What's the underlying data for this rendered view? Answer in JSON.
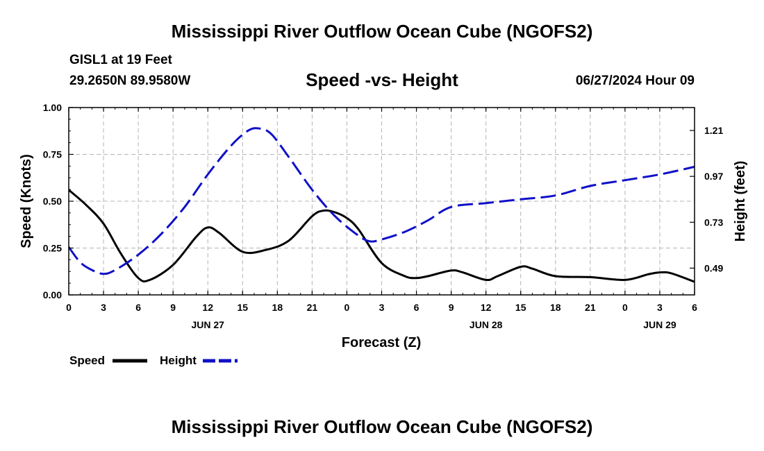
{
  "header": {
    "title": "Mississippi River Outflow Ocean Cube (NGOFS2)",
    "station": "GISL1 at 19 Feet",
    "coords": "29.2650N  89.9580W",
    "subtitle": "Speed -vs- Height",
    "timestamp": "06/27/2024 Hour 09"
  },
  "footer": {
    "title": "Mississippi River Outflow Ocean Cube (NGOFS2)"
  },
  "colors": {
    "speed": "#000000",
    "height": "#1010c8",
    "grid": "#b4b4b4"
  },
  "chart_data": {
    "type": "line",
    "xlabel": "Forecast (Z)",
    "ylabel_left": "Speed (Knots)",
    "ylabel_right": "Height (feet)",
    "x_range": [
      0,
      54
    ],
    "x_ticks": [
      {
        "x": 0,
        "label": "0"
      },
      {
        "x": 3,
        "label": "3"
      },
      {
        "x": 6,
        "label": "6"
      },
      {
        "x": 9,
        "label": "9"
      },
      {
        "x": 12,
        "label": "12"
      },
      {
        "x": 15,
        "label": "15"
      },
      {
        "x": 18,
        "label": "18"
      },
      {
        "x": 21,
        "label": "21"
      },
      {
        "x": 24,
        "label": "0"
      },
      {
        "x": 27,
        "label": "3"
      },
      {
        "x": 30,
        "label": "6"
      },
      {
        "x": 33,
        "label": "9"
      },
      {
        "x": 36,
        "label": "12"
      },
      {
        "x": 39,
        "label": "15"
      },
      {
        "x": 42,
        "label": "18"
      },
      {
        "x": 45,
        "label": "21"
      },
      {
        "x": 48,
        "label": "0"
      },
      {
        "x": 51,
        "label": "3"
      },
      {
        "x": 54,
        "label": "6"
      }
    ],
    "date_labels": [
      {
        "x": 12,
        "label": "JUN 27"
      },
      {
        "x": 36,
        "label": "JUN 28"
      },
      {
        "x": 51,
        "label": "JUN 29"
      }
    ],
    "ylim_left": [
      0,
      1
    ],
    "y_ticks_left": [
      {
        "v": 0.0,
        "label": "0.00"
      },
      {
        "v": 0.25,
        "label": "0.25"
      },
      {
        "v": 0.5,
        "label": "0.50"
      },
      {
        "v": 0.75,
        "label": "0.75"
      },
      {
        "v": 1.0,
        "label": "1.00"
      }
    ],
    "ylim_right": [
      0.35,
      1.33
    ],
    "y_ticks_right": [
      {
        "v": 0.49,
        "label": "0.49"
      },
      {
        "v": 0.73,
        "label": "0.73"
      },
      {
        "v": 0.97,
        "label": "0.97"
      },
      {
        "v": 1.21,
        "label": "1.21"
      }
    ],
    "series": [
      {
        "name": "Speed",
        "axis": "left",
        "style": "solid",
        "x": [
          0,
          1.5,
          3,
          4.5,
          6,
          7,
          9,
          11,
          12,
          13,
          15,
          17,
          19,
          21,
          22,
          23,
          24,
          25,
          27,
          29,
          30,
          31,
          33,
          34,
          36,
          37,
          39,
          40,
          42,
          45,
          48,
          50,
          51,
          52,
          54
        ],
        "values": [
          0.56,
          0.48,
          0.38,
          0.22,
          0.09,
          0.08,
          0.16,
          0.31,
          0.36,
          0.33,
          0.23,
          0.24,
          0.29,
          0.42,
          0.45,
          0.44,
          0.41,
          0.35,
          0.17,
          0.1,
          0.09,
          0.1,
          0.13,
          0.12,
          0.08,
          0.1,
          0.15,
          0.14,
          0.1,
          0.095,
          0.08,
          0.11,
          0.12,
          0.115,
          0.07
        ]
      },
      {
        "name": "Height",
        "axis": "right",
        "style": "dashed",
        "x": [
          0,
          1,
          2,
          3,
          4,
          6,
          8,
          10,
          12,
          14,
          15.5,
          16.5,
          17.5,
          19,
          21,
          23,
          25,
          26,
          27,
          29,
          31,
          33,
          36,
          39,
          42,
          45,
          48,
          51,
          54
        ],
        "values": [
          0.6,
          0.52,
          0.48,
          0.46,
          0.48,
          0.56,
          0.67,
          0.81,
          0.98,
          1.13,
          1.21,
          1.22,
          1.19,
          1.07,
          0.9,
          0.76,
          0.66,
          0.63,
          0.64,
          0.68,
          0.74,
          0.81,
          0.83,
          0.85,
          0.87,
          0.92,
          0.95,
          0.98,
          1.02
        ]
      }
    ],
    "legend": [
      {
        "name": "Speed",
        "label": "Speed"
      },
      {
        "name": "Height",
        "label": "Height"
      }
    ]
  }
}
